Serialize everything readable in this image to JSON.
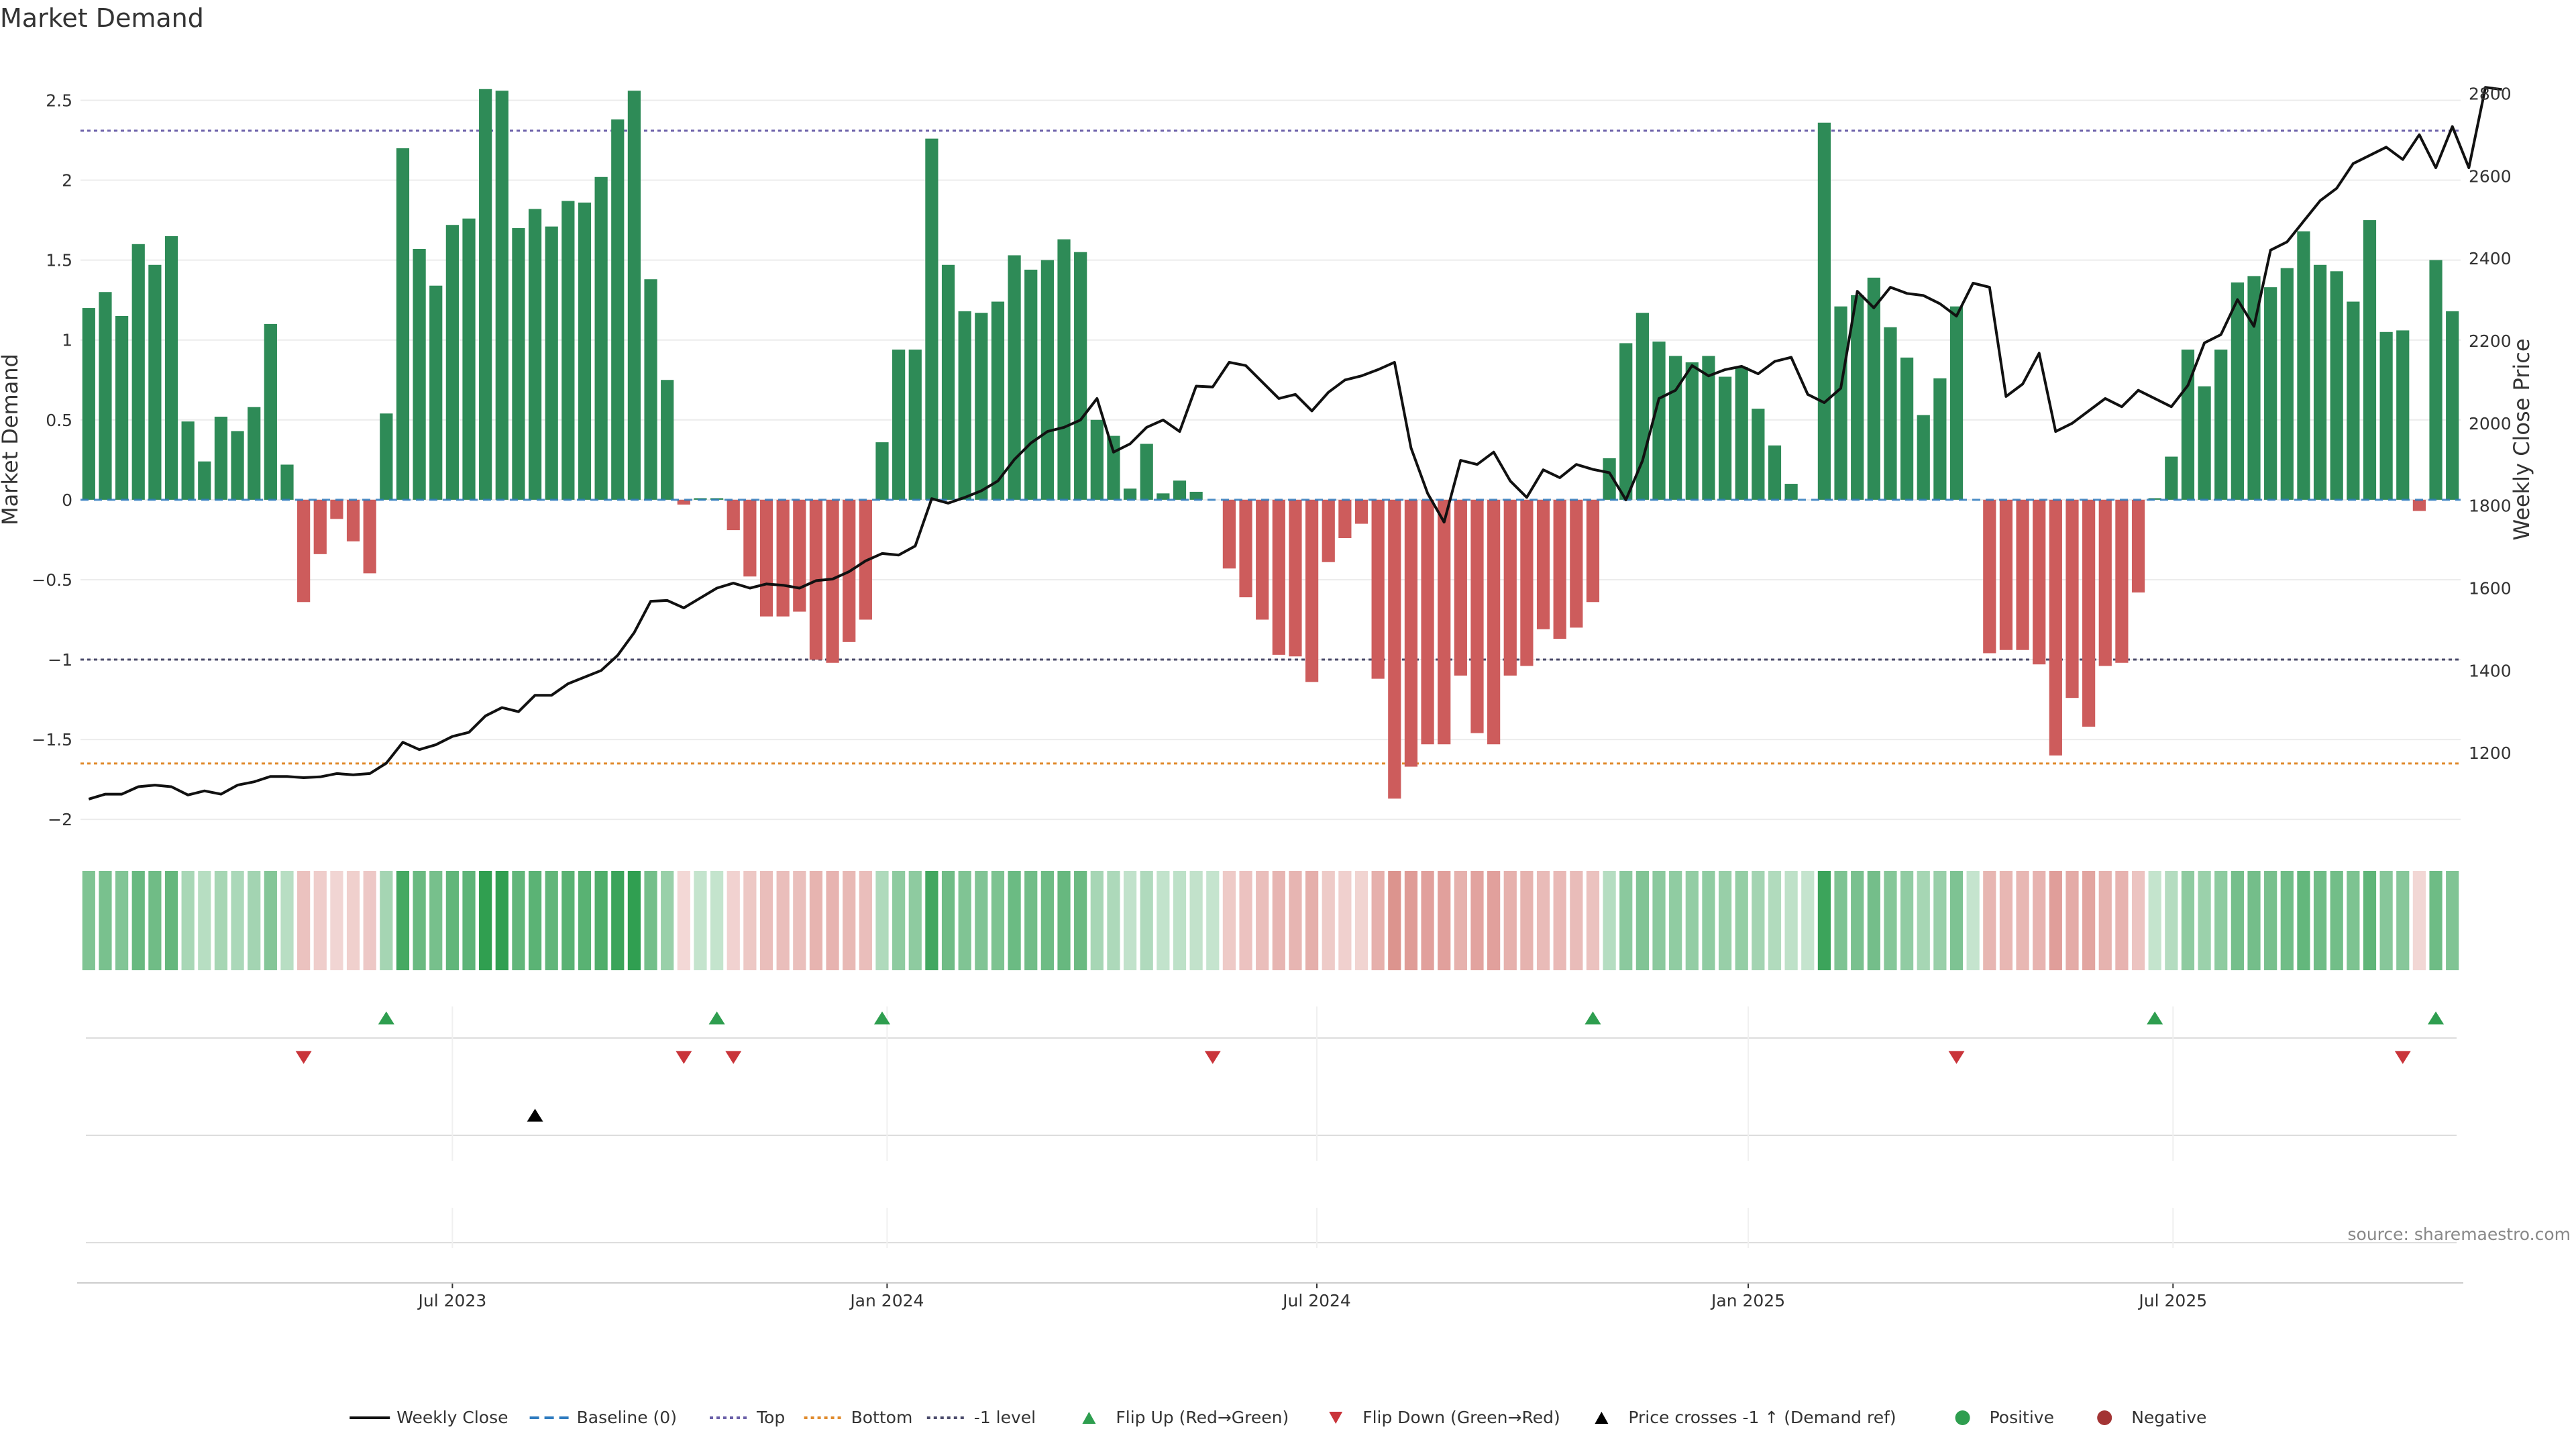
{
  "chart_data": {
    "type": "bar",
    "title": "Market Demand",
    "ylabel": "Market Demand",
    "y2label": "Weekly Close Price",
    "ylim": [
      -2.1,
      2.8
    ],
    "y2lim": [
      1000,
      2900
    ],
    "yticks": [
      2.5,
      2,
      1.5,
      1,
      0.5,
      0,
      -0.5,
      -1,
      -1.5,
      -2
    ],
    "ytick_labels": [
      "2.5",
      "2",
      "1.5",
      "1",
      "0.5",
      "0",
      "−0.5",
      "−1",
      "−1.5",
      "−2"
    ],
    "y2ticks": [
      2800,
      2600,
      2400,
      2200,
      2000,
      1800,
      1600,
      1400,
      1200
    ],
    "xticks": [
      {
        "label": "Jul 2023",
        "index": 22
      },
      {
        "label": "Jan 2024",
        "index": 48.3
      },
      {
        "label": "Jul 2024",
        "index": 74.3
      },
      {
        "label": "Jan 2025",
        "index": 100.4
      },
      {
        "label": "Jul 2025",
        "index": 126.1
      }
    ],
    "reference_lines": [
      {
        "name": "Top",
        "value": 2.31,
        "color": "#6a5fa8"
      },
      {
        "name": "-1 level",
        "value": -1,
        "color": "#4a4a6a"
      },
      {
        "name": "Bottom",
        "value": -1.65,
        "color": "#e08a2c"
      }
    ],
    "series": [
      {
        "name": "Market Demand",
        "values": [
          1.2,
          1.3,
          1.15,
          1.6,
          1.47,
          1.65,
          0.49,
          0.24,
          0.52,
          0.43,
          0.58,
          1.1,
          0.22,
          -0.64,
          -0.34,
          -0.12,
          -0.26,
          -0.46,
          0.54,
          2.2,
          1.57,
          1.34,
          1.72,
          1.76,
          2.57,
          2.56,
          1.7,
          1.82,
          1.71,
          1.87,
          1.86,
          2.02,
          2.38,
          2.56,
          1.38,
          0.75,
          -0.03,
          0.01,
          0.01,
          -0.19,
          -0.48,
          -0.73,
          -0.73,
          -0.7,
          -1,
          -1.02,
          -0.89,
          -0.75,
          0.36,
          0.94,
          0.94,
          2.26,
          1.47,
          1.18,
          1.17,
          1.24,
          1.53,
          1.44,
          1.5,
          1.63,
          1.55,
          0.5,
          0.4,
          0.07,
          0.35,
          0.04,
          0.12,
          0.05,
          0,
          -0.43,
          -0.61,
          -0.75,
          -0.97,
          -0.98,
          -1.14,
          -0.39,
          -0.24,
          -0.15,
          -1.12,
          -1.87,
          -1.67,
          -1.53,
          -1.53,
          -1.1,
          -1.46,
          -1.53,
          -1.1,
          -1.04,
          -0.81,
          -0.87,
          -0.8,
          -0.64,
          0.26,
          0.98,
          1.17,
          0.99,
          0.9,
          0.86,
          0.9,
          0.77,
          0.83,
          0.57,
          0.34,
          0.1,
          0,
          2.36,
          1.21,
          1.28,
          1.39,
          1.08,
          0.89,
          0.53,
          0.76,
          1.21,
          0,
          -0.96,
          -0.94,
          -0.94,
          -1.03,
          -1.6,
          -1.24,
          -1.42,
          -1.04,
          -1.02,
          -0.58,
          0.01,
          0.27,
          0.94,
          0.71,
          0.94,
          1.36,
          1.4,
          1.33,
          1.45,
          1.68,
          1.47,
          1.43,
          1.24,
          1.75,
          1.05,
          1.06,
          -0.07,
          1.5,
          1.18
        ]
      },
      {
        "name": "Weekly Close",
        "axis": "right",
        "values": [
          1088,
          1100,
          1100,
          1118,
          1122,
          1118,
          1098,
          1108,
          1100,
          1122,
          1130,
          1143,
          1143,
          1140,
          1142,
          1150,
          1147,
          1150,
          1175,
          1226,
          1208,
          1220,
          1240,
          1250,
          1290,
          1310,
          1300,
          1340,
          1340,
          1368,
          1384,
          1400,
          1437,
          1492,
          1568,
          1570,
          1552,
          1576,
          1600,
          1612,
          1600,
          1610,
          1607,
          1600,
          1618,
          1622,
          1640,
          1666,
          1684,
          1680,
          1702,
          1817,
          1806,
          1820,
          1836,
          1860,
          1912,
          1952,
          1980,
          1990,
          2008,
          2060,
          1930,
          1950,
          1990,
          2008,
          1980,
          2090,
          2088,
          2148,
          2140,
          2100,
          2060,
          2070,
          2030,
          2075,
          2105,
          2115,
          2130,
          2148,
          1940,
          1830,
          1760,
          1910,
          1900,
          1930,
          1860,
          1820,
          1887,
          1868,
          1900,
          1888,
          1880,
          1814,
          1909,
          2060,
          2080,
          2140,
          2115,
          2130,
          2138,
          2120,
          2150,
          2160,
          2070,
          2050,
          2085,
          2320,
          2280,
          2330,
          2315,
          2310,
          2290,
          2260,
          2340,
          2330,
          2065,
          2095,
          2170,
          1980,
          2000,
          2030,
          2060,
          2040,
          2080,
          2060,
          2040,
          2092,
          2195,
          2215,
          2300,
          2235,
          2420,
          2440,
          2490,
          2540,
          2570,
          2630,
          2650,
          2670,
          2640,
          2700,
          2620,
          2720,
          2620,
          2815,
          2810
        ]
      }
    ],
    "flip_up_indices": [
      18,
      38,
      48,
      91,
      125,
      142
    ],
    "flip_down_indices": [
      13,
      36,
      39,
      68,
      113,
      140
    ],
    "cross_indices": [
      27
    ],
    "source": "source: sharemaestro.com",
    "legend": [
      {
        "label": "Weekly Close",
        "kind": "line",
        "color": "#111111"
      },
      {
        "label": "Baseline (0)",
        "kind": "dash",
        "color": "#2e7bbf"
      },
      {
        "label": "Top",
        "kind": "dot",
        "color": "#6a5fa8"
      },
      {
        "label": "Bottom",
        "kind": "dot",
        "color": "#e08a2c"
      },
      {
        "label": "-1 level",
        "kind": "dot",
        "color": "#4a4a6a"
      },
      {
        "label": "Flip Up (Red→Green)",
        "kind": "tri-up",
        "color": "#2e9e4f"
      },
      {
        "label": "Flip Down (Green→Red)",
        "kind": "tri-down",
        "color": "#c9343a"
      },
      {
        "label": "Price crosses -1 ↑ (Demand ref)",
        "kind": "tri-up",
        "color": "#000000"
      },
      {
        "label": "Positive",
        "kind": "circle",
        "color": "#2e9e4f"
      },
      {
        "label": "Negative",
        "kind": "circle",
        "color": "#a33434"
      }
    ],
    "colors": {
      "positive": "#2e8b57",
      "negative": "#cd5c5c",
      "heat_pos": "#2e9e4f",
      "heat_neg": "#c9574f"
    }
  }
}
